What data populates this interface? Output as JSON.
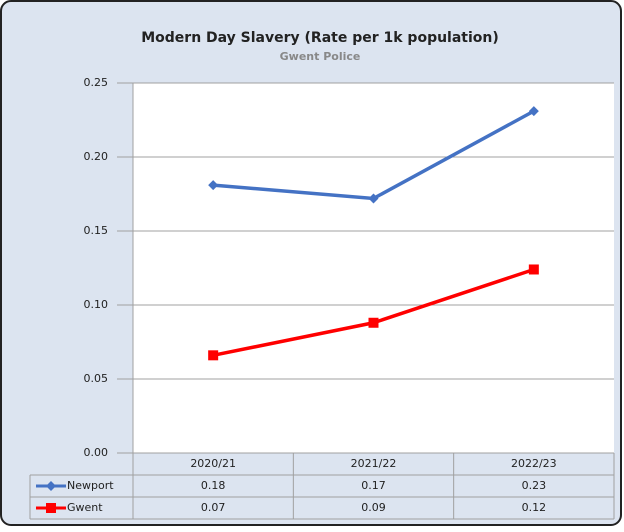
{
  "chart_data": {
    "type": "line",
    "title": "Modern Day Slavery (Rate per 1k population)",
    "subtitle": "Gwent Police",
    "categories": [
      "2020/21",
      "2021/22",
      "2022/23"
    ],
    "series": [
      {
        "name": "Newport",
        "color": "#4472c4",
        "marker": "diamond",
        "values": [
          0.181,
          0.172,
          0.231
        ],
        "value_labels": [
          "0.18",
          "0.17",
          "0.23"
        ]
      },
      {
        "name": "Gwent",
        "color": "#ff0000",
        "marker": "square",
        "values": [
          0.066,
          0.088,
          0.124
        ],
        "value_labels": [
          "0.07",
          "0.09",
          "0.12"
        ]
      }
    ],
    "ylim": [
      0,
      0.25
    ],
    "yticks": [
      {
        "value": 0,
        "label": "0.00"
      },
      0.05,
      {
        "value": 0.1,
        "label": "0.10"
      },
      0.15,
      {
        "value": 0.2,
        "label": "0.20"
      },
      0.25
    ],
    "grid": true
  }
}
